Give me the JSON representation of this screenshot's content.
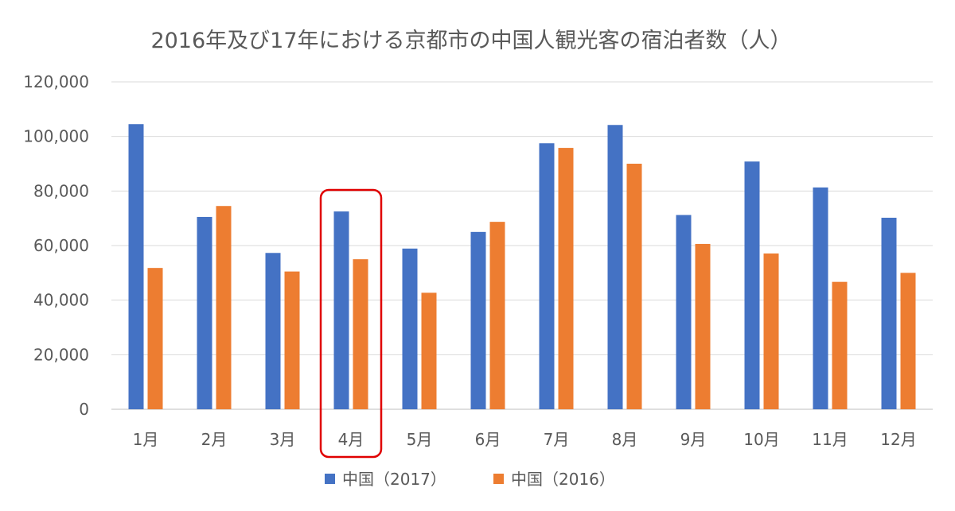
{
  "chart_data": {
    "type": "bar",
    "title": "2016年及び17年における京都市の中国人観光客の宿泊者数（人）",
    "categories": [
      "1月",
      "2月",
      "3月",
      "4月",
      "5月",
      "6月",
      "7月",
      "8月",
      "9月",
      "10月",
      "11月",
      "12月"
    ],
    "series": [
      {
        "name": "中国（2017）",
        "color": "#4472c4",
        "values": [
          104500,
          70500,
          57300,
          72500,
          58900,
          65000,
          97500,
          104200,
          71200,
          90800,
          81300,
          70200
        ]
      },
      {
        "name": "中国（2016）",
        "color": "#ed7d31",
        "values": [
          51800,
          74500,
          50500,
          55000,
          42700,
          68700,
          95800,
          90000,
          60600,
          57100,
          46700,
          50000
        ]
      }
    ],
    "ylim": [
      0,
      120000
    ],
    "yticks": [
      "0",
      "20,000",
      "40,000",
      "60,000",
      "80,000",
      "100,000",
      "120,000"
    ],
    "ytick_values": [
      0,
      20000,
      40000,
      60000,
      80000,
      100000,
      120000
    ],
    "grid": true,
    "legend": "bottom",
    "highlight": {
      "category": "4月",
      "color": "#e00000"
    }
  }
}
